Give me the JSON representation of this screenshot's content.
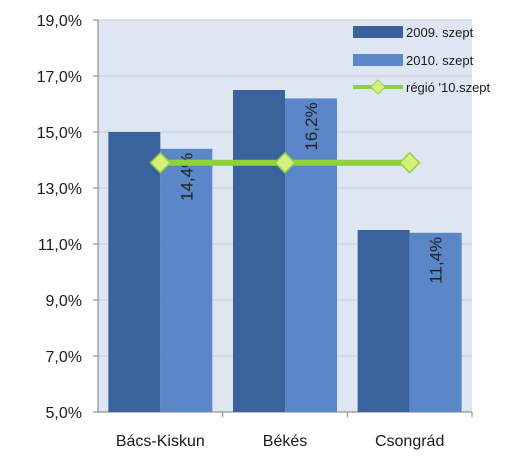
{
  "chart_data": {
    "type": "bar",
    "categories": [
      "Bács-Kiskun",
      "Békés",
      "Csongrád"
    ],
    "series": [
      {
        "name": "2009. szept",
        "values": [
          15.0,
          16.5,
          11.5
        ],
        "color": "#3a639d",
        "data_labels": [
          "",
          "",
          ""
        ]
      },
      {
        "name": "2010. szept",
        "values": [
          14.4,
          16.2,
          11.4
        ],
        "color": "#5b87c8",
        "data_labels": [
          "14,4%",
          "16,2%",
          "11,4%"
        ]
      }
    ],
    "line_series": {
      "name": "régió '10.szept",
      "values": [
        13.9,
        13.9,
        13.9
      ],
      "color": "#8fd13f"
    },
    "ylim": [
      5.0,
      19.0
    ],
    "yticks": [
      "5,0%",
      "7,0%",
      "9,0%",
      "11,0%",
      "13,0%",
      "15,0%",
      "17,0%",
      "19,0%"
    ],
    "grid": true,
    "legend_position": "top-right",
    "plot_background": "#dde6f2"
  }
}
